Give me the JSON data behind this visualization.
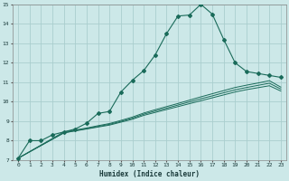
{
  "bg_color": "#cce8e8",
  "grid_color": "#aacece",
  "line_color": "#1a6b5a",
  "xlabel": "Humidex (Indice chaleur)",
  "xlim": [
    -0.5,
    23.5
  ],
  "ylim": [
    7,
    15
  ],
  "yticks": [
    7,
    8,
    9,
    10,
    11,
    12,
    13,
    14,
    15
  ],
  "xticks": [
    0,
    1,
    2,
    3,
    4,
    5,
    6,
    7,
    8,
    9,
    10,
    11,
    12,
    13,
    14,
    15,
    16,
    17,
    18,
    19,
    20,
    21,
    22,
    23
  ],
  "main_line_x": [
    0,
    1,
    2,
    3,
    4,
    5,
    6,
    7,
    8,
    9,
    10,
    11,
    12,
    13,
    14,
    15,
    16,
    17,
    18,
    19,
    20,
    21,
    22,
    23
  ],
  "main_line_y": [
    7.1,
    8.0,
    8.0,
    8.3,
    8.45,
    8.6,
    8.9,
    9.4,
    9.5,
    10.5,
    11.1,
    11.6,
    12.4,
    13.5,
    14.4,
    14.45,
    15.0,
    14.5,
    13.2,
    12.0,
    11.55,
    11.45,
    11.35,
    11.25
  ],
  "smooth_line1_x": [
    0,
    4,
    5,
    6,
    7,
    8,
    9,
    10,
    11,
    12,
    13,
    14,
    15,
    16,
    17,
    18,
    19,
    20,
    21,
    22,
    23
  ],
  "smooth_line1_y": [
    7.1,
    8.4,
    8.5,
    8.6,
    8.7,
    8.8,
    8.95,
    9.1,
    9.3,
    9.45,
    9.6,
    9.75,
    9.9,
    10.05,
    10.2,
    10.35,
    10.5,
    10.62,
    10.72,
    10.82,
    10.55
  ],
  "smooth_line2_x": [
    0,
    4,
    5,
    6,
    7,
    8,
    9,
    10,
    11,
    12,
    13,
    14,
    15,
    16,
    17,
    18,
    19,
    20,
    21,
    22,
    23
  ],
  "smooth_line2_y": [
    7.1,
    8.4,
    8.52,
    8.62,
    8.73,
    8.84,
    8.99,
    9.15,
    9.36,
    9.52,
    9.67,
    9.83,
    9.99,
    10.15,
    10.3,
    10.46,
    10.61,
    10.73,
    10.84,
    10.95,
    10.65
  ],
  "smooth_line3_x": [
    0,
    4,
    5,
    6,
    7,
    8,
    9,
    10,
    11,
    12,
    13,
    14,
    15,
    16,
    17,
    18,
    19,
    20,
    21,
    22,
    23
  ],
  "smooth_line3_y": [
    7.1,
    8.45,
    8.55,
    8.65,
    8.77,
    8.88,
    9.04,
    9.21,
    9.42,
    9.59,
    9.75,
    9.91,
    10.08,
    10.25,
    10.41,
    10.57,
    10.73,
    10.85,
    10.96,
    11.08,
    10.75
  ]
}
